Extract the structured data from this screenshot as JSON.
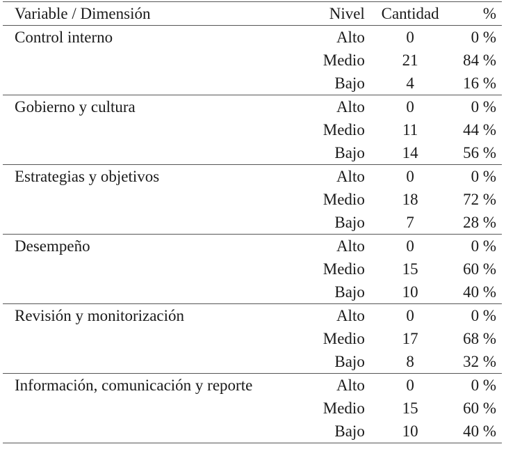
{
  "table": {
    "headers": {
      "variable": "Variable / Dimensión",
      "nivel": "Nivel",
      "cantidad": "Cantidad",
      "porcentaje": "%"
    },
    "groups": [
      {
        "name": "Control interno",
        "rows": [
          {
            "nivel": "Alto",
            "cantidad": "0",
            "porcentaje": "0 %"
          },
          {
            "nivel": "Medio",
            "cantidad": "21",
            "porcentaje": "84 %"
          },
          {
            "nivel": "Bajo",
            "cantidad": "4",
            "porcentaje": "16 %"
          }
        ]
      },
      {
        "name": "Gobierno y cultura",
        "rows": [
          {
            "nivel": "Alto",
            "cantidad": "0",
            "porcentaje": "0 %"
          },
          {
            "nivel": "Medio",
            "cantidad": "11",
            "porcentaje": "44 %"
          },
          {
            "nivel": "Bajo",
            "cantidad": "14",
            "porcentaje": "56 %"
          }
        ]
      },
      {
        "name": "Estrategias y objetivos",
        "rows": [
          {
            "nivel": "Alto",
            "cantidad": "0",
            "porcentaje": "0 %"
          },
          {
            "nivel": "Medio",
            "cantidad": "18",
            "porcentaje": "72 %"
          },
          {
            "nivel": "Bajo",
            "cantidad": "7",
            "porcentaje": "28 %"
          }
        ]
      },
      {
        "name": "Desempeño",
        "rows": [
          {
            "nivel": "Alto",
            "cantidad": "0",
            "porcentaje": "0 %"
          },
          {
            "nivel": "Medio",
            "cantidad": "15",
            "porcentaje": "60 %"
          },
          {
            "nivel": "Bajo",
            "cantidad": "10",
            "porcentaje": "40 %"
          }
        ]
      },
      {
        "name": "Revisión y monitorización",
        "rows": [
          {
            "nivel": "Alto",
            "cantidad": "0",
            "porcentaje": "0 %"
          },
          {
            "nivel": "Medio",
            "cantidad": "17",
            "porcentaje": "68 %"
          },
          {
            "nivel": "Bajo",
            "cantidad": "8",
            "porcentaje": "32 %"
          }
        ]
      },
      {
        "name": "Información, comunicación y reporte",
        "rows": [
          {
            "nivel": "Alto",
            "cantidad": "0",
            "porcentaje": "0 %"
          },
          {
            "nivel": "Medio",
            "cantidad": "15",
            "porcentaje": "60 %"
          },
          {
            "nivel": "Bajo",
            "cantidad": "10",
            "porcentaje": "40 %"
          }
        ]
      }
    ]
  }
}
